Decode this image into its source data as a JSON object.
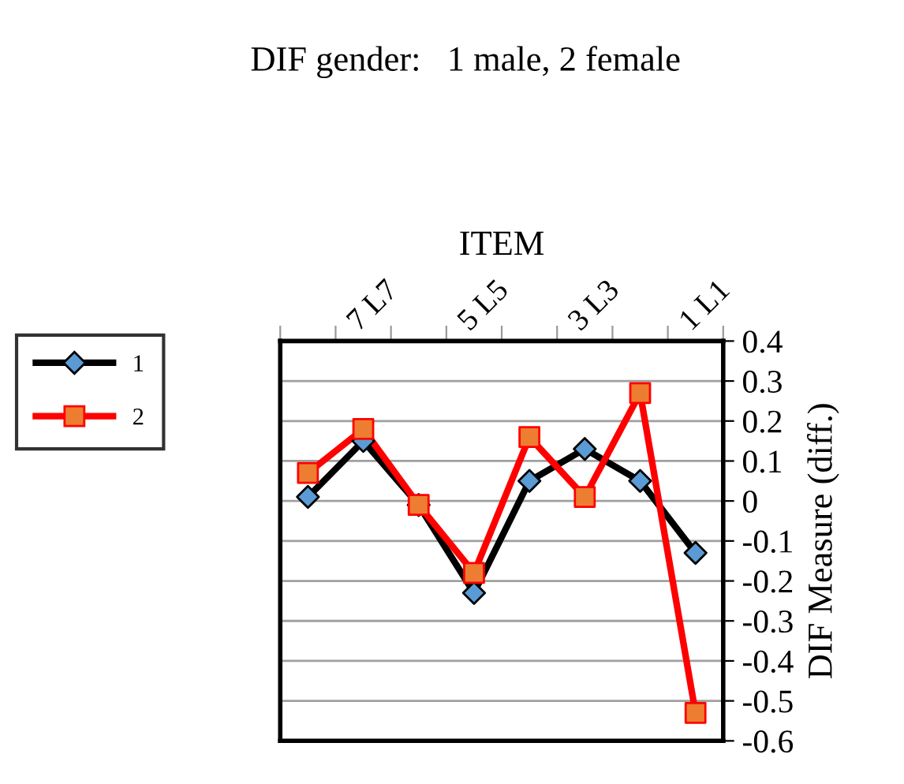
{
  "chart_data": {
    "type": "line",
    "title": "DIF gender:   1 male, 2 female",
    "xlabel": "ITEM",
    "ylabel": "DIF Measure (diff.)",
    "categories": [
      null,
      "7 L7",
      null,
      "5 L5",
      null,
      "3 L3",
      null,
      "1 L1"
    ],
    "series": [
      {
        "name": "1",
        "color": "#000000",
        "colors": [
          "#5b9bd5",
          "#5b9bd5",
          "#5b9bd5",
          "#5b9bd5",
          "#5b9bd5",
          "#5b9bd5",
          "#5b9bd5",
          "#5b9bd5"
        ],
        "marker": "diamond",
        "values": [
          0.01,
          0.15,
          -0.01,
          -0.23,
          0.05,
          0.13,
          0.05,
          -0.13
        ]
      },
      {
        "name": "2",
        "color": "#ff0000",
        "colors": [
          "#ed7d31",
          "#ed7d31",
          "#ed7d31",
          "#ed7d31",
          "#ed7d31",
          "#ed7d31",
          "#ed7d31",
          "#ed7d31"
        ],
        "marker": "square",
        "values": [
          0.07,
          0.18,
          -0.01,
          -0.18,
          0.16,
          0.01,
          0.27,
          -0.53
        ]
      }
    ],
    "ylim": [
      -0.6,
      0.4
    ],
    "yticks": [
      -0.6,
      -0.5,
      -0.4,
      -0.3,
      -0.2,
      -0.1,
      0,
      0.1,
      0.2,
      0.3,
      0.4
    ],
    "grid": "y",
    "legend": "left",
    "line_style": "solid"
  }
}
